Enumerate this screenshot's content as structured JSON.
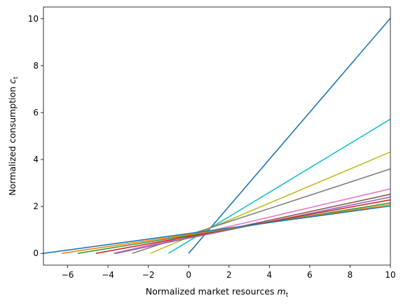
{
  "chart_data": {
    "type": "line",
    "title": "",
    "xlabel": {
      "text": "Normalized market resources ",
      "var": "m",
      "sub": "t"
    },
    "ylabel": {
      "text": "Normalized consumption ",
      "var": "c",
      "sub": "t"
    },
    "xlim": [
      -7.2,
      10
    ],
    "ylim": [
      -0.5,
      10.5
    ],
    "xticks": [
      -6,
      -4,
      -2,
      0,
      2,
      4,
      6,
      8,
      10
    ],
    "yticks": [
      0,
      2,
      4,
      6,
      8,
      10
    ],
    "grid": false,
    "series": [
      {
        "color": "#1f77b4",
        "points": [
          [
            0,
            0
          ],
          [
            10,
            10.02
          ]
        ]
      },
      {
        "color": "#17becf",
        "points": [
          [
            -1.0,
            0
          ],
          [
            10,
            5.72
          ]
        ]
      },
      {
        "color": "#bcbd22",
        "points": [
          [
            -1.9,
            0
          ],
          [
            10,
            4.32
          ]
        ]
      },
      {
        "color": "#7f7f7f",
        "points": [
          [
            -2.8,
            0
          ],
          [
            10,
            3.6
          ]
        ]
      },
      {
        "color": "#e377c2",
        "points": [
          [
            -3.7,
            0
          ],
          [
            10,
            2.75
          ]
        ]
      },
      {
        "color": "#8c564b",
        "points": [
          [
            -3.6,
            0
          ],
          [
            10,
            2.52
          ]
        ]
      },
      {
        "color": "#9467bd",
        "points": [
          [
            -3.7,
            0
          ],
          [
            10,
            2.4
          ]
        ]
      },
      {
        "color": "#d62728",
        "points": [
          [
            -4.6,
            0
          ],
          [
            10,
            2.28
          ]
        ]
      },
      {
        "color": "#2ca02c",
        "points": [
          [
            -5.5,
            0
          ],
          [
            10,
            2.15
          ]
        ]
      },
      {
        "color": "#ff7f0e",
        "points": [
          [
            -6.3,
            0
          ],
          [
            10,
            2.08
          ]
        ]
      },
      {
        "color": "#1f77b4",
        "points": [
          [
            -7.2,
            0
          ],
          [
            10,
            2.02
          ]
        ]
      }
    ]
  }
}
